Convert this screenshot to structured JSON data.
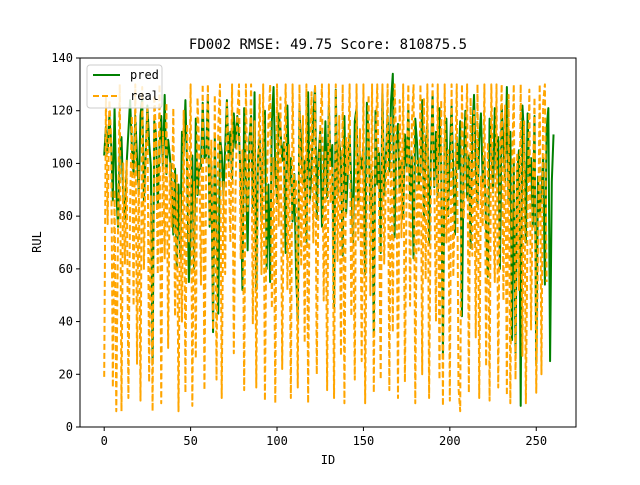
{
  "chart_data": {
    "type": "line",
    "title": "FD002 RMSE:  49.75  Score: 810875.5",
    "xlabel": "ID",
    "ylabel": "RUL",
    "xlim": [
      -14,
      273
    ],
    "ylim": [
      0,
      140
    ],
    "xticks": [
      0,
      50,
      100,
      150,
      200,
      250
    ],
    "yticks": [
      0,
      20,
      40,
      60,
      80,
      100,
      120,
      140
    ],
    "grid": false,
    "legend_position": "top-left",
    "series": [
      {
        "name": "pred",
        "color": "#008000",
        "style": "solid",
        "values": [
          103,
          114,
          104,
          118,
          108,
          86,
          121,
          90,
          76,
          104,
          110,
          88,
          79,
          100,
          112,
          124,
          106,
          96,
          118,
          102,
          89,
          118,
          125,
          86,
          103,
          122,
          108,
          99,
          24,
          116,
          111,
          83,
          106,
          118,
          98,
          126,
          96,
          109,
          103,
          92,
          73,
          98,
          61,
          92,
          64,
          112,
          104,
          124,
          98,
          55,
          72,
          103,
          60,
          117,
          88,
          99,
          98,
          123,
          102,
          103,
          126,
          76,
          100,
          36,
          110,
          74,
          43,
          110,
          104,
          88,
          106,
          124,
          101,
          112,
          94,
          119,
          106,
          118,
          111,
          93,
          52,
          121,
          96,
          67,
          109,
          118,
          83,
          127,
          52,
          102,
          110,
          78,
          108,
          120,
          60,
          92,
          55,
          116,
          129,
          98,
          85,
          119,
          113,
          101,
          108,
          66,
          122,
          93,
          102,
          78,
          96,
          59,
          41,
          121,
          106,
          92,
          101,
          70,
          127,
          86,
          98,
          118,
          129,
          79,
          103,
          112,
          76,
          95,
          116,
          87,
          122,
          99,
          107,
          45,
          128,
          88,
          109,
          101,
          65,
          118,
          81,
          97,
          111,
          92,
          70,
          116,
          121,
          85,
          103,
          98,
          106,
          58,
          123,
          110,
          82,
          97,
          35,
          120,
          92,
          104,
          66,
          128,
          88,
          103,
          118,
          97,
          124,
          134,
          72,
          107,
          115,
          89,
          101,
          79,
          111,
          99,
          121,
          86,
          103,
          64,
          117,
          108,
          92,
          97,
          124,
          80,
          106,
          115,
          69,
          102,
          126,
          91,
          112,
          87,
          121,
          99,
          28,
          108,
          117,
          80,
          104,
          122,
          96,
          73,
          110,
          98,
          116,
          42,
          101,
          120,
          87,
          103,
          68,
          112,
          126,
          98,
          84,
          109,
          119,
          93,
          102,
          75,
          57,
          117,
          106,
          89,
          121,
          98,
          110,
          60,
          122,
          107,
          93,
          129,
          85,
          112,
          33,
          101,
          28,
          97,
          105,
          8,
          122,
          110,
          70,
          119,
          94,
          102,
          76,
          118,
          24,
          95,
          81,
          89,
          102,
          54,
          113,
          121,
          25,
          93,
          111
        ]
      },
      {
        "name": "real",
        "color": "#FFA500",
        "style": "dashed",
        "values": [
          19,
          125,
          77,
          124,
          110,
          15,
          90,
          6,
          76,
          130,
          6,
          100,
          62,
          101,
          11,
          84,
          118,
          46,
          130,
          24,
          99,
          10,
          129,
          60,
          104,
          121,
          17,
          88,
          6,
          126,
          110,
          58,
          130,
          9,
          112,
          64,
          123,
          30,
          100,
          76,
          121,
          42,
          96,
          6,
          88,
          40,
          120,
          13,
          115,
          70,
          130,
          8,
          93,
          26,
          125,
          104,
          54,
          130,
          14,
          97,
          130,
          77,
          109,
          37,
          126,
          18,
          114,
          130,
          11,
          93,
          58,
          123,
          102,
          70,
          130,
          28,
          91,
          118,
          130,
          64,
          105,
          14,
          130,
          82,
          97,
          130,
          39,
          116,
          15,
          100,
          126,
          58,
          130,
          10,
          88,
          115,
          130,
          45,
          102,
          9,
          130,
          76,
          125,
          22,
          99,
          130,
          52,
          107,
          11,
          130,
          85,
          94,
          15,
          130,
          61,
          118,
          32,
          130,
          9,
          102,
          127,
          70,
          130,
          20,
          92,
          113,
          130,
          48,
          105,
          14,
          130,
          85,
          99,
          11,
          130,
          63,
          118,
          27,
          130,
          9,
          110,
          96,
          130,
          42,
          87,
          18,
          130,
          71,
          113,
          25,
          130,
          9,
          91,
          126,
          50,
          130,
          13,
          105,
          130,
          86,
          18,
          130,
          62,
          94,
          130,
          14,
          118,
          36,
          130,
          108,
          11,
          124,
          72,
          130,
          17,
          94,
          130,
          46,
          115,
          130,
          9,
          101,
          67,
          130,
          20,
          125,
          56,
          130,
          11,
          88,
          130,
          94,
          40,
          130,
          18,
          124,
          8,
          130,
          70,
          105,
          10,
          130,
          57,
          93,
          130,
          15,
          6,
          130,
          79,
          101,
          130,
          13,
          125,
          65,
          120,
          34,
          130,
          11,
          95,
          76,
          130,
          23,
          108,
          10,
          130,
          88,
          55,
          130,
          15,
          102,
          130,
          48,
          122,
          12,
          126,
          9,
          97,
          130,
          18,
          104,
          52,
          130,
          27,
          116,
          9,
          80,
          128,
          37,
          92,
          125,
          13,
          68,
          130,
          20,
          123,
          130,
          55
        ]
      }
    ]
  }
}
